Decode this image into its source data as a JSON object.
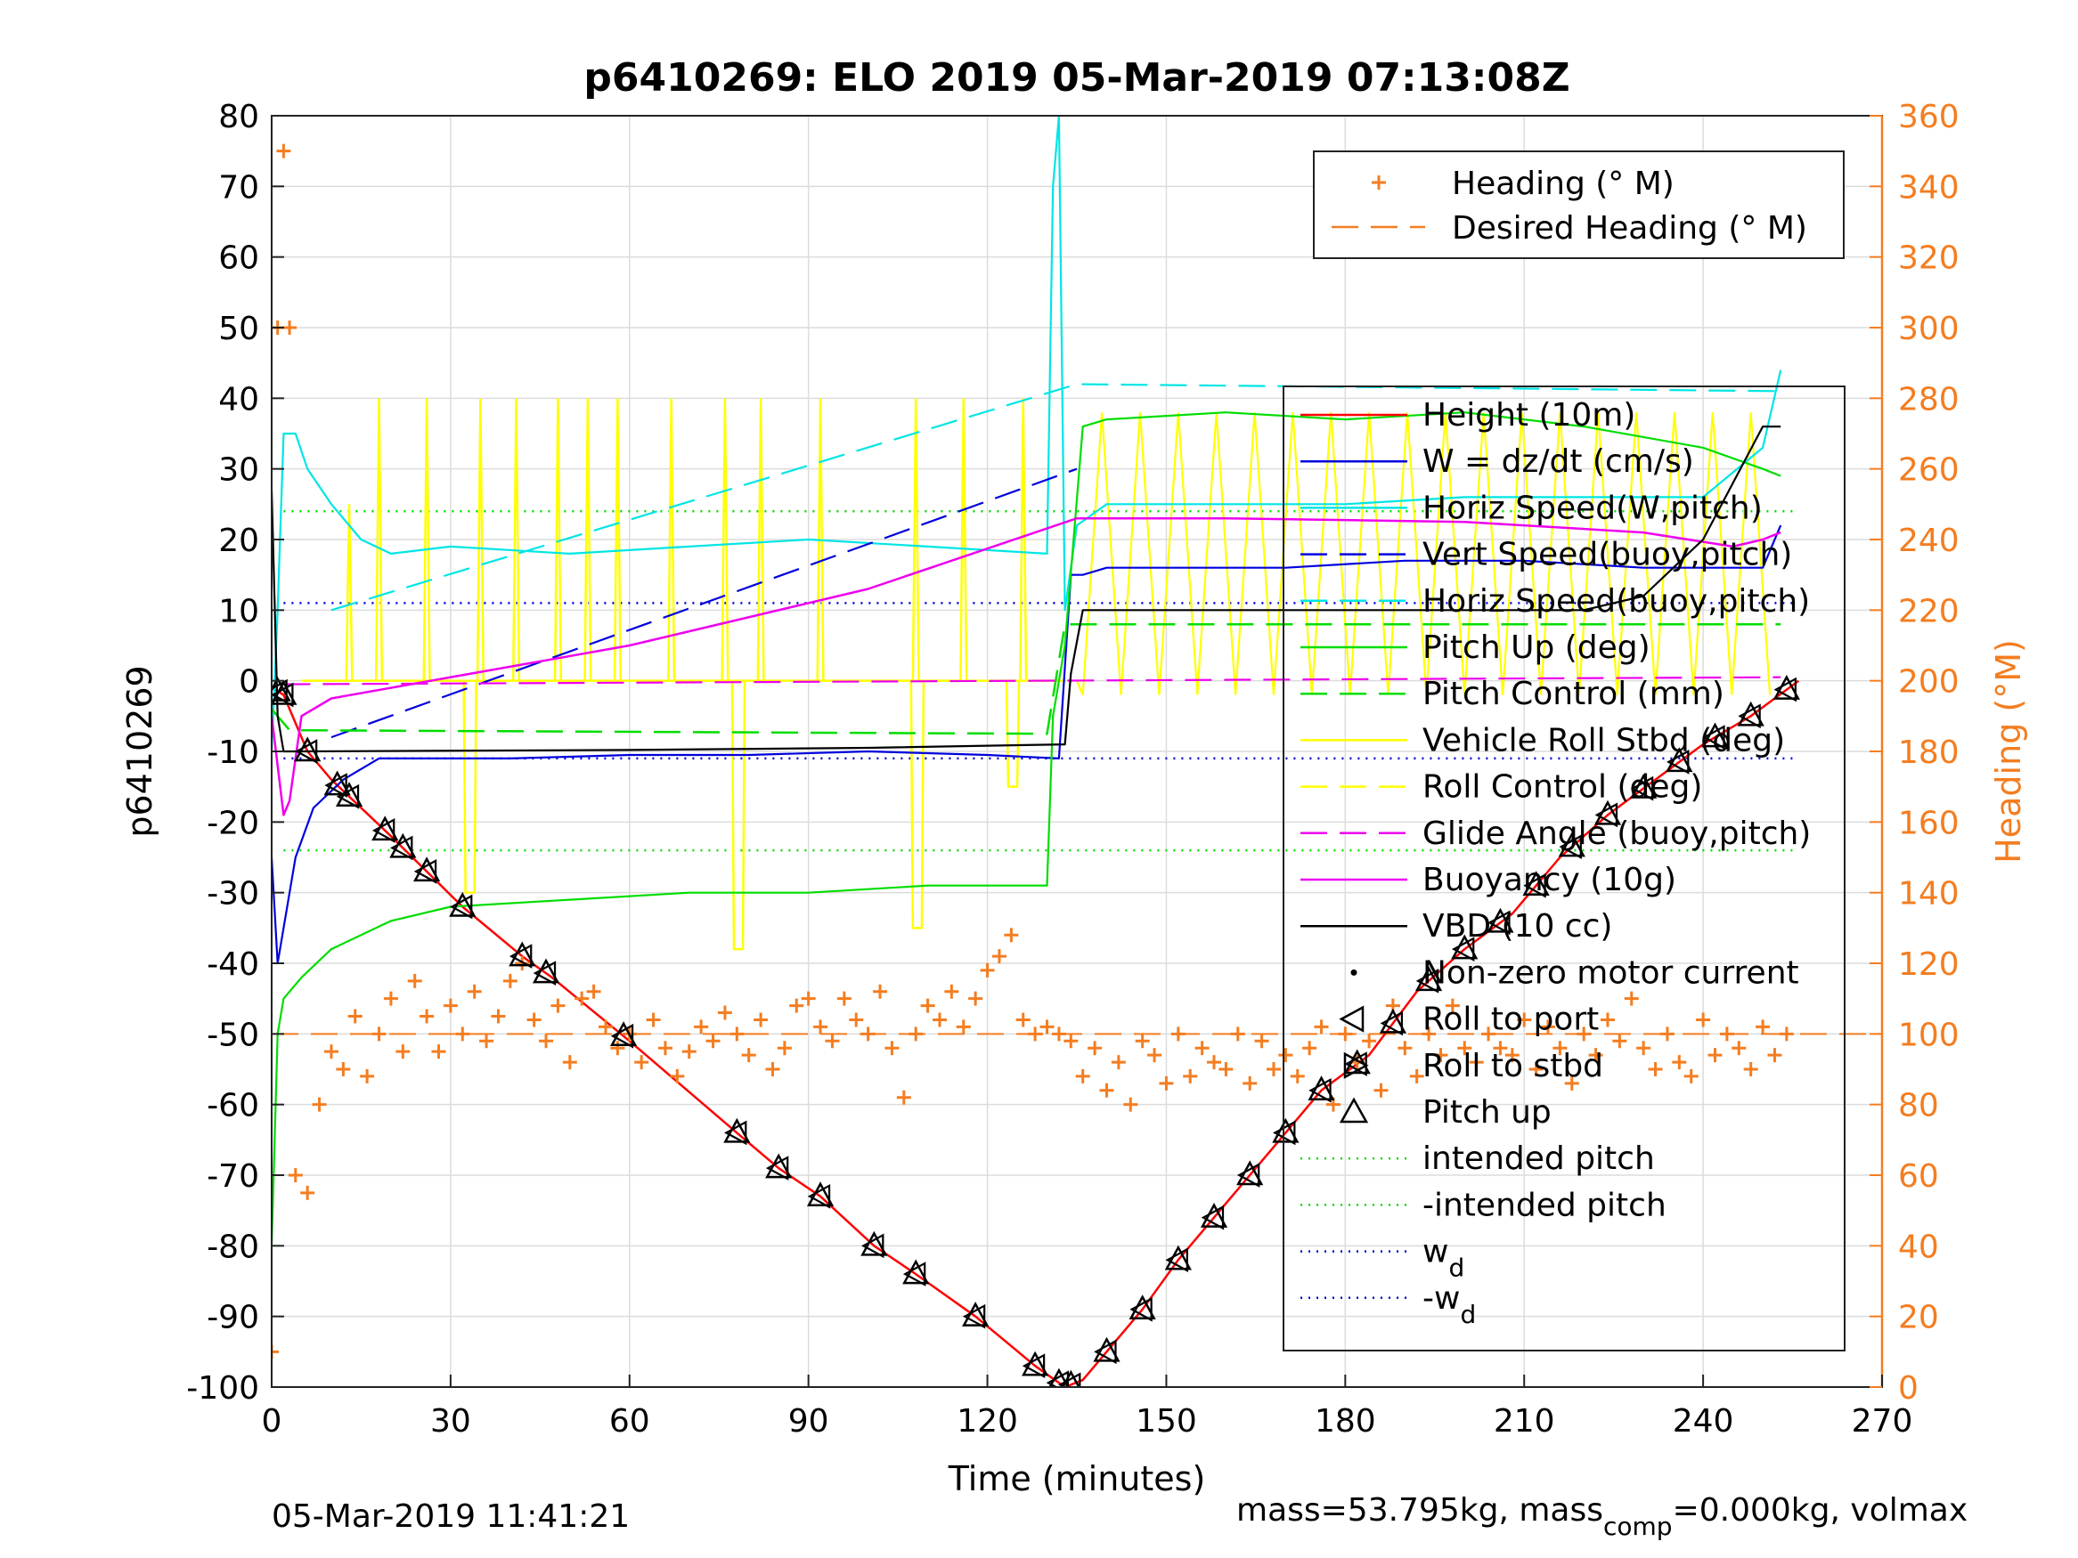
{
  "title": "p6410269: ELO 2019 05-Mar-2019 07:13:08Z",
  "footer_left": "05-Mar-2019 11:41:21",
  "footer_right": {
    "pre": "mass=53.795kg, mass",
    "sub": "comp",
    "post": "=0.000kg, volmax"
  },
  "chart_data": {
    "type": "line",
    "title": "p6410269: ELO 2019 05-Mar-2019 07:13:08Z",
    "xlabel": "Time (minutes)",
    "ylabel": "p6410269",
    "ylabel_right": "Heading (°M)",
    "xlim": [
      0,
      270
    ],
    "ylim": [
      -100,
      80
    ],
    "ylim_right": [
      0,
      360
    ],
    "xticks": [
      0,
      30,
      60,
      90,
      120,
      150,
      180,
      210,
      240,
      270
    ],
    "yticks": [
      -100,
      -90,
      -80,
      -70,
      -60,
      -50,
      -40,
      -30,
      -20,
      -10,
      0,
      10,
      20,
      30,
      40,
      50,
      60,
      70,
      80
    ],
    "yticks_right": [
      0,
      20,
      40,
      60,
      80,
      100,
      120,
      140,
      160,
      180,
      200,
      220,
      240,
      260,
      280,
      300,
      320,
      340,
      360
    ],
    "grid": true,
    "colors": {
      "heading": "#f47d20",
      "height": "#ff0000",
      "w": "#0000dd",
      "horiz": "#00e5e5",
      "pitch": "#00dd00",
      "roll": "#ffff00",
      "glide": "#ee00ee",
      "vbd": "#000000"
    },
    "legend_right": [
      {
        "label": "Heading (° M)",
        "style": "plus",
        "color": "#f47d20"
      },
      {
        "label": "Desired Heading (° M)",
        "style": "dash",
        "color": "#f47d20"
      }
    ],
    "legend_left": [
      {
        "label": "Height (10m)",
        "style": "solid",
        "color": "#ff0000"
      },
      {
        "label": "W = dz/dt (cm/s)",
        "style": "solid",
        "color": "#0000dd"
      },
      {
        "label": "Horiz Speed(W,pitch)",
        "style": "solid",
        "color": "#00e5e5"
      },
      {
        "label": "Vert Speed(buoy,pitch)",
        "style": "dash",
        "color": "#0000dd"
      },
      {
        "label": "Horiz Speed(buoy,pitch)",
        "style": "dash",
        "color": "#00e5e5"
      },
      {
        "label": "Pitch Up (deg)",
        "style": "solid",
        "color": "#00dd00"
      },
      {
        "label": "Pitch Control (mm)",
        "style": "dash",
        "color": "#00dd00"
      },
      {
        "label": "Vehicle Roll Stbd (deg)",
        "style": "solid",
        "color": "#ffff00"
      },
      {
        "label": "Roll Control (deg)",
        "style": "dash",
        "color": "#ffff00"
      },
      {
        "label": "Glide Angle (buoy,pitch)",
        "style": "dash",
        "color": "#ee00ee"
      },
      {
        "label": "Buoyancy (10g)",
        "style": "solid",
        "color": "#ee00ee"
      },
      {
        "label": "VBD (10 cc)",
        "style": "solid",
        "color": "#000000"
      },
      {
        "label": "Non-zero motor current",
        "style": "dot",
        "color": "#000000"
      },
      {
        "label": "Roll to port",
        "style": "tri-left",
        "color": "#000000"
      },
      {
        "label": "Roll to stbd",
        "style": "tri-right",
        "color": "#000000"
      },
      {
        "label": "Pitch up",
        "style": "tri-up",
        "color": "#000000"
      },
      {
        "label": "intended pitch",
        "style": "dot-line",
        "color": "#00dd00"
      },
      {
        "label": "-intended pitch",
        "style": "dot-line",
        "color": "#00dd00"
      },
      {
        "label": "w",
        "sub": "d",
        "style": "dot-line",
        "color": "#0000dd"
      },
      {
        "label": "-w",
        "sub": "d",
        "style": "dot-line",
        "color": "#0000dd"
      }
    ],
    "reference_lines": [
      {
        "name": "intended pitch",
        "y": 24
      },
      {
        "name": "-intended pitch",
        "y": -24
      },
      {
        "name": "w_d",
        "y": 11
      },
      {
        "name": "-w_d",
        "y": -11
      },
      {
        "name": "Desired Heading (° M)",
        "y_right": 100,
        "x": [
          0,
          270
        ]
      }
    ],
    "series": [
      {
        "name": "Height (10m)",
        "x": [
          0,
          2,
          6,
          10,
          20,
          32,
          42,
          47,
          60,
          78,
          85,
          92,
          101,
          108,
          118,
          128,
          133,
          136,
          140,
          146,
          152,
          160,
          168,
          176,
          184,
          192,
          200,
          208,
          216,
          224,
          232,
          240,
          248,
          256
        ],
        "y": [
          -1,
          -2,
          -10,
          -14,
          -22,
          -32,
          -39,
          -42,
          -51,
          -64,
          -69,
          -73,
          -80,
          -84,
          -90,
          -97,
          -100,
          -99,
          -95,
          -89,
          -82,
          -74,
          -66,
          -58,
          -53,
          -44,
          -38,
          -33,
          -25,
          -19,
          -14,
          -9,
          -5,
          0
        ]
      },
      {
        "name": "W = dz/dt (cm/s)",
        "x": [
          0,
          1,
          2,
          4,
          7,
          12,
          18,
          25,
          40,
          60,
          80,
          100,
          120,
          132,
          134,
          136,
          140,
          150,
          170,
          190,
          210,
          230,
          250,
          253
        ],
        "y": [
          -25,
          -40,
          -35,
          -25,
          -18,
          -14,
          -11,
          -11,
          -11,
          -10.5,
          -10.5,
          -10,
          -10.5,
          -11,
          15,
          15,
          16,
          16,
          16,
          17,
          17,
          16,
          16,
          22
        ]
      },
      {
        "name": "Horiz Speed(W,pitch)",
        "x": [
          0,
          1,
          2,
          4,
          6,
          10,
          15,
          20,
          30,
          50,
          70,
          90,
          110,
          130,
          131,
          132,
          133,
          135,
          140,
          160,
          180,
          200,
          220,
          240,
          250,
          253
        ],
        "y": [
          -10,
          10,
          35,
          35,
          30,
          25,
          20,
          18,
          19,
          18,
          19,
          20,
          19,
          18,
          70,
          80,
          10,
          22,
          25,
          25,
          25,
          26,
          26,
          26,
          33,
          44
        ]
      },
      {
        "name": "Vert Speed(buoy,pitch)",
        "x": [
          10,
          135
        ],
        "y": [
          -8,
          30
        ]
      },
      {
        "name": "Horiz Speed(buoy,pitch)",
        "x": [
          10,
          135,
          253
        ],
        "y": [
          10,
          42,
          41
        ]
      },
      {
        "name": "Pitch Up (deg)",
        "x": [
          0,
          1,
          2,
          5,
          10,
          20,
          30,
          50,
          70,
          90,
          110,
          130,
          131,
          133,
          136,
          140,
          160,
          180,
          200,
          220,
          240,
          250,
          253
        ],
        "y": [
          -80,
          -50,
          -45,
          -42,
          -38,
          -34,
          -32,
          -31,
          -30,
          -30,
          -29,
          -29,
          -5,
          5,
          36,
          37,
          38,
          37,
          38,
          36,
          33,
          30,
          29
        ]
      },
      {
        "name": "Pitch Control (mm)",
        "x": [
          0,
          3,
          130,
          133,
          253
        ],
        "y": [
          -4,
          -7,
          -7.5,
          8,
          8
        ]
      },
      {
        "name": "Glide Angle (buoy,pitch)",
        "x": [
          2,
          253
        ],
        "y": [
          -0.5,
          0.5
        ]
      },
      {
        "name": "Buoyancy (10g)",
        "x": [
          0,
          1,
          2,
          3,
          5,
          10,
          60,
          100,
          135,
          160,
          200,
          230,
          245,
          250,
          253
        ],
        "y": [
          -5,
          -12,
          -19,
          -17,
          -5,
          -2.5,
          5,
          13,
          23,
          23,
          22.5,
          21,
          19,
          20,
          21
        ]
      },
      {
        "name": "VBD (10 cc)",
        "x": [
          0,
          1,
          2,
          5,
          60,
          100,
          133,
          134,
          136,
          180,
          220,
          230,
          240,
          245,
          250,
          253
        ],
        "y": [
          27,
          -5,
          -10,
          -10,
          -9.8,
          -9.5,
          -9,
          1,
          10,
          10,
          10,
          12,
          20,
          28,
          36,
          36
        ]
      }
    ],
    "markers": {
      "pitch_up_x": [
        1,
        2,
        6,
        11,
        13,
        19,
        22,
        26,
        32,
        42,
        46,
        59,
        78,
        85,
        92,
        101,
        108,
        118,
        128,
        132,
        134,
        140,
        146,
        152,
        158,
        164,
        170,
        176,
        182,
        188,
        194,
        200,
        206,
        212,
        218,
        224,
        230,
        236,
        242,
        248,
        254
      ],
      "heading": {
        "x": [
          0,
          1,
          2,
          3,
          4,
          6,
          8,
          10,
          12,
          14,
          16,
          18,
          20,
          22,
          24,
          26,
          28,
          30,
          32,
          34,
          36,
          38,
          40,
          42,
          44,
          46,
          48,
          50,
          52,
          54,
          56,
          58,
          60,
          62,
          64,
          66,
          68,
          70,
          72,
          74,
          76,
          78,
          80,
          82,
          84,
          86,
          88,
          90,
          92,
          94,
          96,
          98,
          100,
          102,
          104,
          106,
          108,
          110,
          112,
          114,
          116,
          118,
          120,
          122,
          124,
          126,
          128,
          130,
          132,
          134,
          136,
          138,
          140,
          142,
          144,
          146,
          148,
          150,
          152,
          154,
          156,
          158,
          160,
          162,
          164,
          166,
          168,
          170,
          172,
          174,
          176,
          178,
          180,
          182,
          184,
          186,
          188,
          190,
          192,
          194,
          196,
          198,
          200,
          202,
          204,
          206,
          208,
          210,
          212,
          214,
          216,
          218,
          220,
          222,
          224,
          226,
          228,
          230,
          232,
          234,
          236,
          238,
          240,
          242,
          244,
          246,
          248,
          250,
          252,
          254
        ],
        "y": [
          10,
          300,
          350,
          300,
          60,
          55,
          80,
          95,
          90,
          105,
          88,
          100,
          110,
          95,
          115,
          105,
          95,
          108,
          100,
          112,
          98,
          105,
          115,
          120,
          104,
          98,
          108,
          92,
          110,
          112,
          102,
          96,
          100,
          92,
          104,
          96,
          88,
          95,
          102,
          98,
          106,
          100,
          94,
          104,
          90,
          96,
          108,
          110,
          102,
          98,
          110,
          104,
          100,
          112,
          96,
          82,
          100,
          108,
          104,
          112,
          102,
          110,
          118,
          122,
          128,
          104,
          100,
          102,
          100,
          98,
          88,
          96,
          84,
          92,
          80,
          98,
          94,
          86,
          100,
          88,
          96,
          92,
          90,
          100,
          86,
          98,
          90,
          94,
          88,
          96,
          102,
          80,
          100,
          92,
          98,
          84,
          108,
          96,
          88,
          100,
          94,
          108,
          96,
          92,
          100,
          96,
          94,
          104,
          90,
          102,
          96,
          86,
          100,
          94,
          104,
          98,
          110,
          96,
          90,
          100,
          92,
          88,
          104,
          94,
          100,
          96,
          90,
          102,
          94,
          100
        ]
      }
    }
  }
}
